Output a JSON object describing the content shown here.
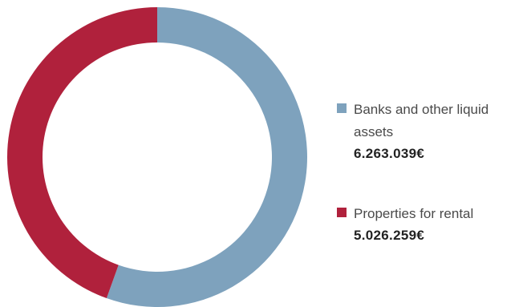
{
  "chart_data": {
    "type": "pie",
    "variant": "donut",
    "title": "",
    "categories": [
      "Banks and other liquid assets",
      "Properties for rental"
    ],
    "values": [
      6263039,
      5026259
    ],
    "value_labels": [
      "6.263.039€",
      "5.026.259€"
    ],
    "colors": [
      "#7ea2bd",
      "#b0213c"
    ],
    "start_angle": "top",
    "direction": "clockwise",
    "legend_position": "right"
  }
}
